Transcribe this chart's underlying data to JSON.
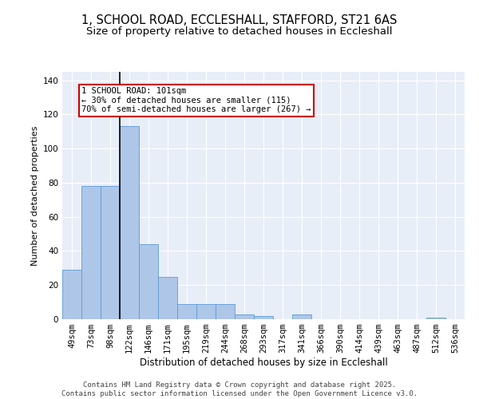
{
  "title_line1": "1, SCHOOL ROAD, ECCLESHALL, STAFFORD, ST21 6AS",
  "title_line2": "Size of property relative to detached houses in Eccleshall",
  "xlabel": "Distribution of detached houses by size in Eccleshall",
  "ylabel": "Number of detached properties",
  "categories": [
    "49sqm",
    "73sqm",
    "98sqm",
    "122sqm",
    "146sqm",
    "171sqm",
    "195sqm",
    "219sqm",
    "244sqm",
    "268sqm",
    "293sqm",
    "317sqm",
    "341sqm",
    "366sqm",
    "390sqm",
    "414sqm",
    "439sqm",
    "463sqm",
    "487sqm",
    "512sqm",
    "536sqm"
  ],
  "values": [
    29,
    78,
    78,
    113,
    44,
    25,
    9,
    9,
    9,
    3,
    2,
    0,
    3,
    0,
    0,
    0,
    0,
    0,
    0,
    1,
    0
  ],
  "bar_color": "#aec6e8",
  "bar_edge_color": "#5b9bd5",
  "vline_x_index": 2,
  "vline_color": "black",
  "vline_linewidth": 1.2,
  "annotation_text": "1 SCHOOL ROAD: 101sqm\n← 30% of detached houses are smaller (115)\n70% of semi-detached houses are larger (267) →",
  "annotation_box_facecolor": "#ffffff",
  "annotation_box_edgecolor": "#cc0000",
  "ylim": [
    0,
    145
  ],
  "yticks": [
    0,
    20,
    40,
    60,
    80,
    100,
    120,
    140
  ],
  "bg_color": "#e8eef8",
  "grid_color": "#ffffff",
  "footer_text": "Contains HM Land Registry data © Crown copyright and database right 2025.\nContains public sector information licensed under the Open Government Licence v3.0.",
  "title_fontsize": 10.5,
  "subtitle_fontsize": 9.5,
  "xlabel_fontsize": 8.5,
  "ylabel_fontsize": 8,
  "tick_fontsize": 7.5,
  "annotation_fontsize": 7.5,
  "footer_fontsize": 6.5
}
